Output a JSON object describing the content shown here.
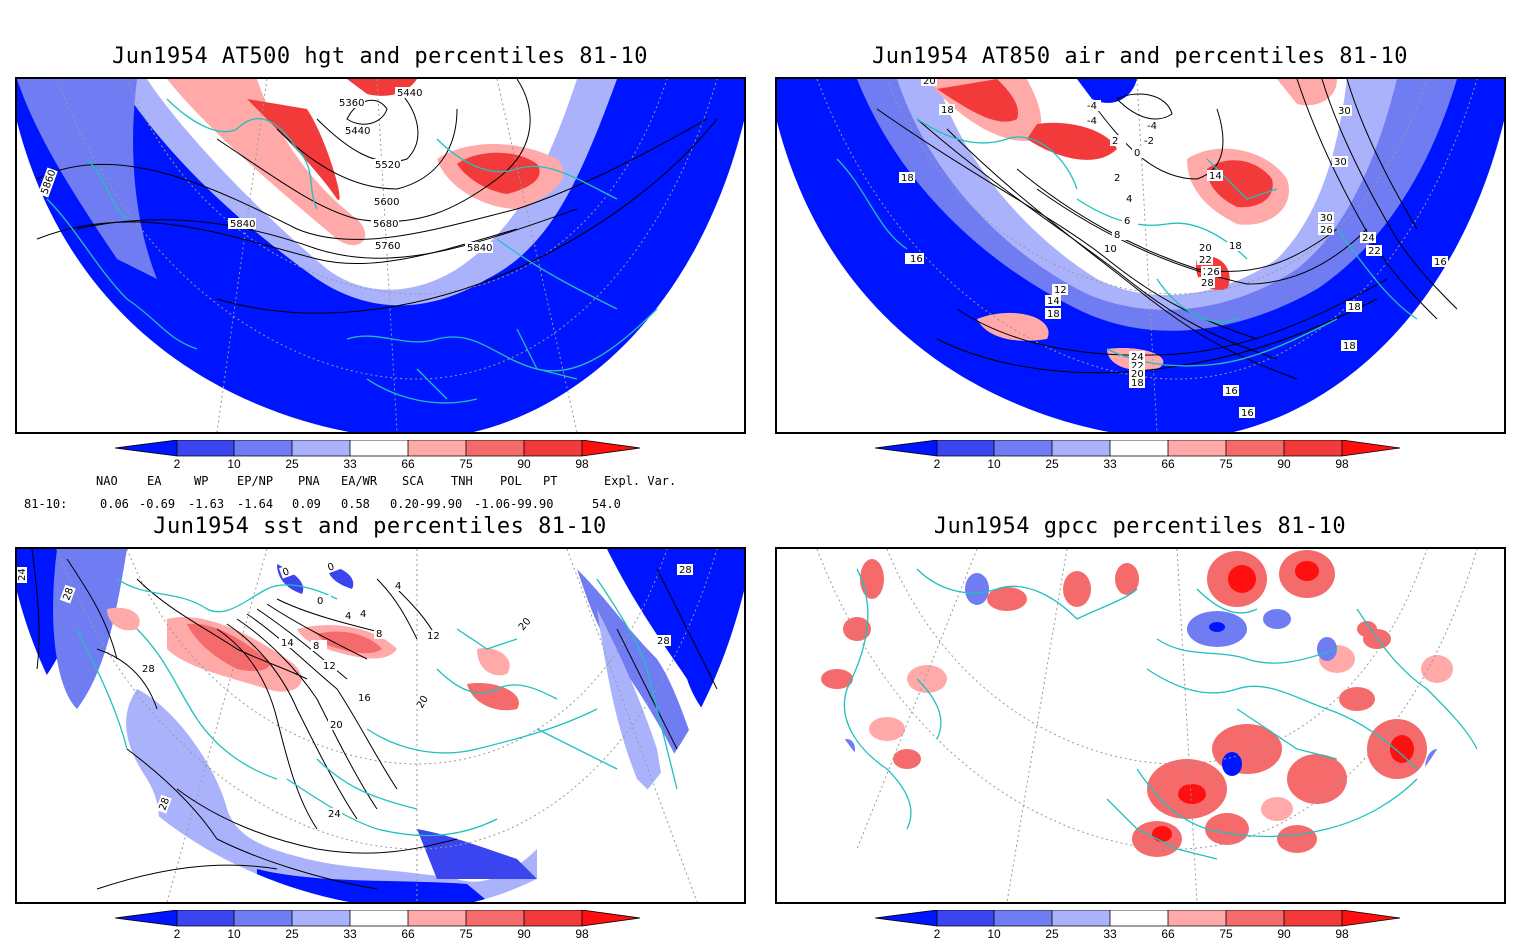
{
  "panels": [
    {
      "id": "p1",
      "title": "Jun1954 AT500 hgt and percentiles 81-10",
      "contour_labels": [
        "5360",
        "5440",
        "5440",
        "5520",
        "5600",
        "5680",
        "5760",
        "5840",
        "5840",
        "5860"
      ]
    },
    {
      "id": "p2",
      "title": "Jun1954 AT850 air and percentiles 81-10",
      "contour_labels": [
        "20",
        "18",
        "18",
        "-4",
        "-4",
        "-4",
        "2",
        "-2",
        "0",
        "2",
        "4",
        "6",
        "8",
        "10",
        "12",
        "14",
        "18",
        "14",
        "18",
        "18",
        "20",
        "22",
        "24",
        "26",
        "28",
        "30",
        "30",
        "30",
        "26",
        "24",
        "22",
        "16",
        "18",
        "18",
        "16",
        "16",
        "16",
        "24",
        "22",
        "20",
        "18"
      ]
    },
    {
      "id": "p3",
      "title": "Jun1954 sst and percentiles 81-10",
      "contour_labels": [
        "24",
        "28",
        "28",
        "0",
        "0",
        "0",
        "4",
        "4",
        "4",
        "8",
        "8",
        "12",
        "12",
        "14",
        "16",
        "20",
        "20",
        "20",
        "24",
        "28",
        "28",
        "28"
      ]
    },
    {
      "id": "p4",
      "title": "Jun1954 gpcc percentiles 81-10",
      "contour_labels": []
    }
  ],
  "legend": {
    "ticks": [
      "2",
      "10",
      "25",
      "33",
      "66",
      "75",
      "90",
      "98"
    ],
    "colors": {
      "blue_extreme": "#0015ff",
      "blue_dark": "#3a45f0",
      "blue_mid": "#6f7cf2",
      "blue_light": "#a9b2fb",
      "white": "#ffffff",
      "red_light": "#ffa9a9",
      "red_mid": "#f56b6b",
      "red_dark": "#f33a3a",
      "red_extreme": "#ff1010"
    }
  },
  "indices": {
    "headers": [
      "NAO",
      "EA",
      "WP",
      "EP/NP",
      "PNA",
      "EA/WR",
      "SCA",
      "TNH",
      "POL",
      "PT",
      "Expl. Var."
    ],
    "row_label": "81-10:",
    "values": [
      "0.06",
      "-0.69",
      "-1.63",
      "-1.64",
      "0.09",
      "0.58",
      "0.20-99.90",
      "-1.06-99.90",
      "54.0"
    ]
  },
  "map_colors": {
    "coast": "#20c0c0",
    "contour": "#000000",
    "grid": "#9a9a9a"
  }
}
